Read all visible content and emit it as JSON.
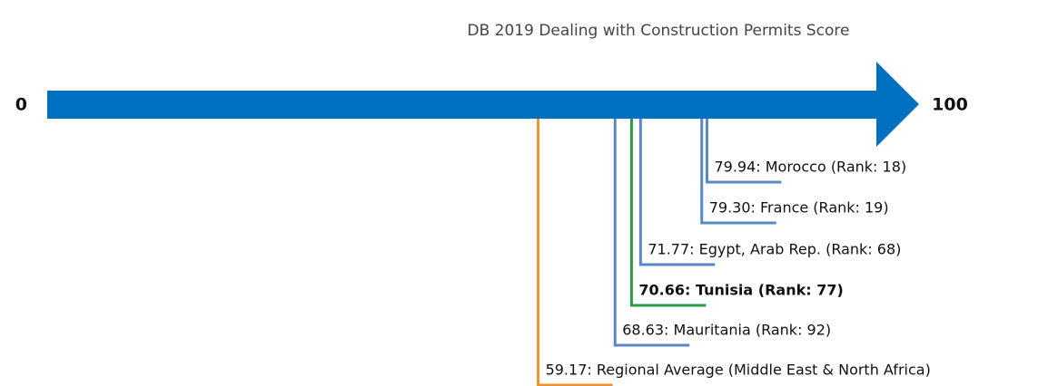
{
  "chart_data": {
    "type": "marker-scale",
    "title": "DB 2019 Dealing with Construction Permits Score",
    "xlim": [
      0,
      100
    ],
    "xticks": [
      0,
      100
    ],
    "values": [
      79.94,
      79.3,
      71.77,
      70.66,
      68.63,
      59.17
    ],
    "value_labels": [
      "79.94: Morocco (Rank: 18)",
      "79.30: France (Rank: 19)",
      "71.77: Egypt, Arab Rep. (Rank: 68)",
      "70.66: Tunisia (Rank: 77)",
      "68.63: Mauritania (Rank: 92)",
      "59.17: Regional Average (Middle East & North Africa)"
    ],
    "colors": [
      "#5a88c6",
      "#5a88c6",
      "#5a88c6",
      "#2e9a44",
      "#5a88c6",
      "#f0922b"
    ],
    "highlight": [
      false,
      false,
      false,
      true,
      false,
      false
    ],
    "axis_color": "#0070c0"
  }
}
